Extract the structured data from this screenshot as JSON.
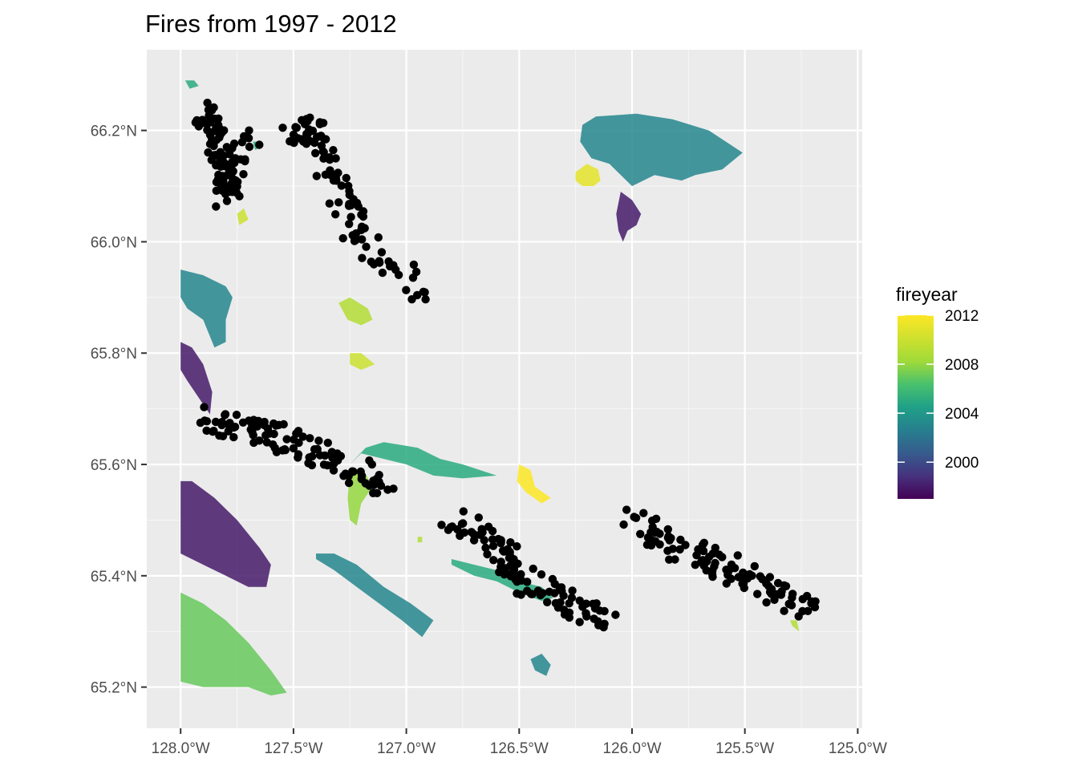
{
  "chart_data": {
    "type": "map",
    "title": "Fires from 1997 - 2012",
    "x_ticks": [
      {
        "value": -128.0,
        "label": "128.0°W"
      },
      {
        "value": -127.5,
        "label": "127.5°W"
      },
      {
        "value": -127.0,
        "label": "127.0°W"
      },
      {
        "value": -126.5,
        "label": "126.5°W"
      },
      {
        "value": -126.0,
        "label": "126.0°W"
      },
      {
        "value": -125.5,
        "label": "125.5°W"
      },
      {
        "value": -125.0,
        "label": "125.0°W"
      }
    ],
    "y_ticks": [
      {
        "value": 65.2,
        "label": "65.2°N"
      },
      {
        "value": 65.4,
        "label": "65.4°N"
      },
      {
        "value": 65.6,
        "label": "65.6°N"
      },
      {
        "value": 65.8,
        "label": "65.8°N"
      },
      {
        "value": 66.0,
        "label": "66.0°N"
      },
      {
        "value": 66.2,
        "label": "66.2°N"
      }
    ],
    "xlim": [
      -128.15,
      -124.98
    ],
    "ylim": [
      65.126,
      66.345
    ],
    "grid": true,
    "background": "#ebebeb",
    "legend": {
      "title": "fireyear",
      "position": "right",
      "colormap": "viridis",
      "min": 1997,
      "max": 2012,
      "ticks": [
        2000,
        2004,
        2008,
        2012
      ],
      "tick_labels": [
        "2000",
        "2004",
        "2008",
        "2012"
      ]
    },
    "hotspot_color": "#000000",
    "fire_polygons": [
      {
        "fireyear": 2003,
        "points": [
          [
            -126.22,
            66.21
          ],
          [
            -126.16,
            66.225
          ],
          [
            -125.98,
            66.23
          ],
          [
            -125.82,
            66.22
          ],
          [
            -125.66,
            66.2
          ],
          [
            -125.51,
            66.16
          ],
          [
            -125.6,
            66.13
          ],
          [
            -125.72,
            66.12
          ],
          [
            -125.78,
            66.11
          ],
          [
            -125.9,
            66.12
          ],
          [
            -126.0,
            66.1
          ],
          [
            -126.1,
            66.14
          ],
          [
            -126.18,
            66.15
          ],
          [
            -126.23,
            66.18
          ]
        ]
      },
      {
        "fireyear": 2011,
        "points": [
          [
            -126.25,
            66.125
          ],
          [
            -126.2,
            66.14
          ],
          [
            -126.15,
            66.13
          ],
          [
            -126.14,
            66.11
          ],
          [
            -126.17,
            66.1
          ],
          [
            -126.22,
            66.1
          ],
          [
            -126.25,
            66.11
          ]
        ]
      },
      {
        "fireyear": 1998,
        "points": [
          [
            -126.05,
            66.09
          ],
          [
            -126.0,
            66.075
          ],
          [
            -125.96,
            66.05
          ],
          [
            -125.98,
            66.03
          ],
          [
            -126.02,
            66.02
          ],
          [
            -126.04,
            66.0
          ],
          [
            -126.06,
            66.02
          ],
          [
            -126.07,
            66.05
          ]
        ]
      },
      {
        "fireyear": 2010,
        "points": [
          [
            -127.75,
            66.05
          ],
          [
            -127.72,
            66.06
          ],
          [
            -127.7,
            66.04
          ],
          [
            -127.74,
            66.03
          ]
        ]
      },
      {
        "fireyear": 2003,
        "points": [
          [
            -128.0,
            65.95
          ],
          [
            -127.9,
            65.94
          ],
          [
            -127.8,
            65.92
          ],
          [
            -127.77,
            65.9
          ],
          [
            -127.8,
            65.86
          ],
          [
            -127.8,
            65.82
          ],
          [
            -127.85,
            65.81
          ],
          [
            -127.9,
            65.86
          ],
          [
            -127.97,
            65.88
          ],
          [
            -128.0,
            65.9
          ]
        ]
      },
      {
        "fireyear": 1998,
        "points": [
          [
            -128.0,
            65.82
          ],
          [
            -127.95,
            65.81
          ],
          [
            -127.9,
            65.78
          ],
          [
            -127.86,
            65.73
          ],
          [
            -127.87,
            65.69
          ],
          [
            -127.92,
            65.72
          ],
          [
            -127.97,
            65.75
          ],
          [
            -128.0,
            65.77
          ]
        ]
      },
      {
        "fireyear": 2009,
        "points": [
          [
            -127.3,
            65.89
          ],
          [
            -127.25,
            65.9
          ],
          [
            -127.17,
            65.88
          ],
          [
            -127.15,
            65.86
          ],
          [
            -127.2,
            65.85
          ],
          [
            -127.26,
            65.86
          ]
        ]
      },
      {
        "fireyear": 2010,
        "points": [
          [
            -127.25,
            65.8
          ],
          [
            -127.2,
            65.8
          ],
          [
            -127.14,
            65.78
          ],
          [
            -127.2,
            65.77
          ],
          [
            -127.25,
            65.78
          ]
        ]
      },
      {
        "fireyear": 2005,
        "points": [
          [
            -127.1,
            65.64
          ],
          [
            -126.95,
            65.63
          ],
          [
            -126.85,
            65.61
          ],
          [
            -126.75,
            65.6
          ],
          [
            -126.6,
            65.58
          ],
          [
            -126.75,
            65.575
          ],
          [
            -126.88,
            65.58
          ],
          [
            -127.0,
            65.6
          ],
          [
            -127.1,
            65.61
          ],
          [
            -127.2,
            65.62
          ],
          [
            -127.25,
            65.6
          ],
          [
            -127.18,
            65.63
          ]
        ]
      },
      {
        "fireyear": 2008,
        "points": [
          [
            -127.25,
            65.58
          ],
          [
            -127.19,
            65.59
          ],
          [
            -127.15,
            65.56
          ],
          [
            -127.2,
            65.53
          ],
          [
            -127.22,
            65.49
          ],
          [
            -127.25,
            65.5
          ],
          [
            -127.26,
            65.54
          ]
        ]
      },
      {
        "fireyear": 2012,
        "points": [
          [
            -126.5,
            65.6
          ],
          [
            -126.45,
            65.59
          ],
          [
            -126.43,
            65.56
          ],
          [
            -126.36,
            65.54
          ],
          [
            -126.4,
            65.53
          ],
          [
            -126.47,
            65.55
          ],
          [
            -126.51,
            65.57
          ]
        ]
      },
      {
        "fireyear": 1998,
        "points": [
          [
            -128.0,
            65.57
          ],
          [
            -127.95,
            65.57
          ],
          [
            -127.85,
            65.54
          ],
          [
            -127.75,
            65.5
          ],
          [
            -127.65,
            65.45
          ],
          [
            -127.6,
            65.42
          ],
          [
            -127.62,
            65.38
          ],
          [
            -127.7,
            65.38
          ],
          [
            -127.8,
            65.4
          ],
          [
            -127.9,
            65.42
          ],
          [
            -128.0,
            65.44
          ]
        ]
      },
      {
        "fireyear": 2007,
        "points": [
          [
            -128.0,
            65.37
          ],
          [
            -127.9,
            65.35
          ],
          [
            -127.8,
            65.32
          ],
          [
            -127.7,
            65.28
          ],
          [
            -127.6,
            65.23
          ],
          [
            -127.53,
            65.19
          ],
          [
            -127.6,
            65.185
          ],
          [
            -127.7,
            65.2
          ],
          [
            -127.8,
            65.2
          ],
          [
            -127.9,
            65.2
          ],
          [
            -128.0,
            65.21
          ]
        ]
      },
      {
        "fireyear": 2003,
        "points": [
          [
            -127.4,
            65.44
          ],
          [
            -127.32,
            65.44
          ],
          [
            -127.22,
            65.42
          ],
          [
            -127.1,
            65.38
          ],
          [
            -126.98,
            65.35
          ],
          [
            -126.88,
            65.32
          ],
          [
            -126.93,
            65.29
          ],
          [
            -127.02,
            65.32
          ],
          [
            -127.12,
            65.35
          ],
          [
            -127.22,
            65.38
          ],
          [
            -127.32,
            65.41
          ],
          [
            -127.4,
            65.43
          ]
        ]
      },
      {
        "fireyear": 2005,
        "points": [
          [
            -126.8,
            65.43
          ],
          [
            -126.7,
            65.42
          ],
          [
            -126.6,
            65.41
          ],
          [
            -126.5,
            65.39
          ],
          [
            -126.4,
            65.38
          ],
          [
            -126.35,
            65.36
          ],
          [
            -126.4,
            65.355
          ],
          [
            -126.5,
            65.37
          ],
          [
            -126.6,
            65.39
          ],
          [
            -126.7,
            65.4
          ],
          [
            -126.8,
            65.42
          ]
        ]
      },
      {
        "fireyear": 2003,
        "points": [
          [
            -126.45,
            65.25
          ],
          [
            -126.4,
            65.26
          ],
          [
            -126.36,
            65.24
          ],
          [
            -126.38,
            65.22
          ],
          [
            -126.43,
            65.23
          ]
        ]
      },
      {
        "fireyear": 2005,
        "points": [
          [
            -127.98,
            66.29
          ],
          [
            -127.94,
            66.29
          ],
          [
            -127.92,
            66.28
          ],
          [
            -127.96,
            66.275
          ]
        ]
      },
      {
        "fireyear": 2005,
        "points": [
          [
            -127.68,
            66.18
          ],
          [
            -127.65,
            66.18
          ],
          [
            -127.64,
            66.17
          ],
          [
            -127.67,
            66.165
          ]
        ]
      },
      {
        "fireyear": 2009,
        "points": [
          [
            -125.3,
            65.32
          ],
          [
            -125.27,
            65.32
          ],
          [
            -125.26,
            65.3
          ],
          [
            -125.29,
            65.31
          ]
        ]
      },
      {
        "fireyear": 2009,
        "points": [
          [
            -126.95,
            65.47
          ],
          [
            -126.93,
            65.47
          ],
          [
            -126.93,
            65.46
          ],
          [
            -126.95,
            65.46
          ]
        ]
      }
    ],
    "hotspot_clusters": [
      {
        "points": [
          [
            -127.9,
            66.24
          ],
          [
            -127.85,
            66.18
          ],
          [
            -127.78,
            66.14
          ],
          [
            -127.8,
            66.08
          ],
          [
            -127.7,
            66.2
          ]
        ]
      },
      {
        "points": [
          [
            -127.5,
            66.2
          ],
          [
            -127.4,
            66.2
          ],
          [
            -127.3,
            66.1
          ],
          [
            -127.2,
            66.0
          ],
          [
            -126.9,
            65.9
          ]
        ]
      },
      {
        "points": [
          [
            -127.9,
            65.68
          ],
          [
            -127.7,
            65.66
          ],
          [
            -127.5,
            65.64
          ],
          [
            -127.3,
            65.6
          ],
          [
            -127.1,
            65.56
          ]
        ]
      },
      {
        "points": [
          [
            -126.8,
            65.5
          ],
          [
            -126.6,
            65.45
          ],
          [
            -126.5,
            65.4
          ],
          [
            -126.3,
            65.35
          ],
          [
            -126.1,
            65.32
          ]
        ]
      },
      {
        "points": [
          [
            -126.0,
            65.5
          ],
          [
            -125.8,
            65.45
          ],
          [
            -125.6,
            65.42
          ],
          [
            -125.4,
            65.38
          ],
          [
            -125.2,
            65.34
          ]
        ]
      }
    ]
  }
}
